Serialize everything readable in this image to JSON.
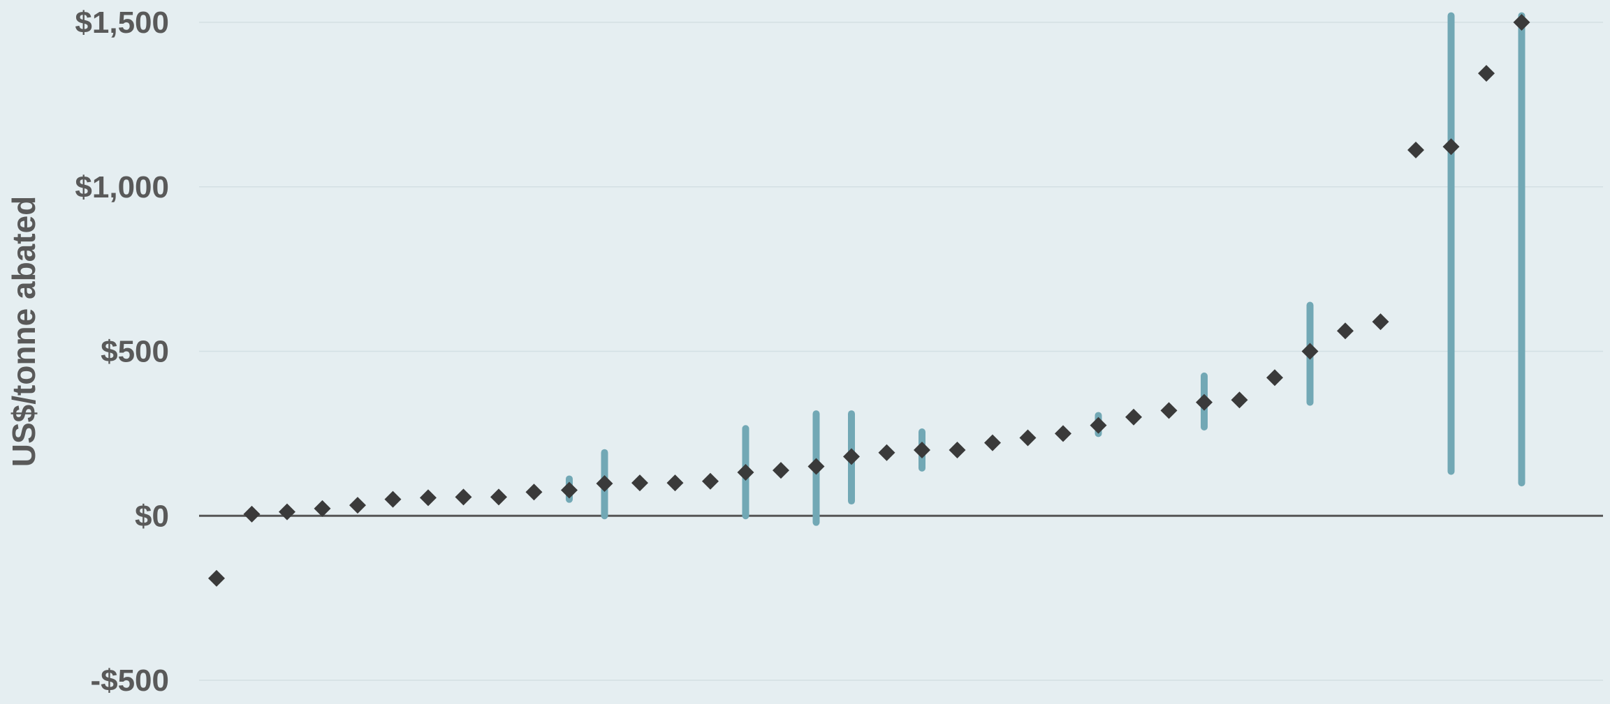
{
  "chart_data": {
    "type": "scatter",
    "title": "",
    "xlabel": "",
    "ylabel": "US$/tonne abated",
    "ylim": [
      -500,
      1500
    ],
    "yticks": [
      {
        "value": 1500,
        "label": "$1,500"
      },
      {
        "value": 1000,
        "label": "$1,000"
      },
      {
        "value": 500,
        "label": "$500"
      },
      {
        "value": 0,
        "label": "$0"
      },
      {
        "value": -500,
        "label": "-$500"
      }
    ],
    "grid": true,
    "legend": "none",
    "colors": {
      "point": "#3a3a3a",
      "range_bar": "#72a8b5",
      "grid": "#d3dfe3",
      "zero_line": "#555555",
      "background": "#e5eef1",
      "text": "#595959"
    },
    "points": [
      {
        "x": 1,
        "y": -190
      },
      {
        "x": 2,
        "y": 5
      },
      {
        "x": 3,
        "y": 12
      },
      {
        "x": 4,
        "y": 22
      },
      {
        "x": 5,
        "y": 32
      },
      {
        "x": 6,
        "y": 50
      },
      {
        "x": 7,
        "y": 55,
        "low": 50,
        "high": 60
      },
      {
        "x": 8,
        "y": 57
      },
      {
        "x": 9,
        "y": 57
      },
      {
        "x": 10,
        "y": 72
      },
      {
        "x": 11,
        "y": 78,
        "low": 50,
        "high": 112
      },
      {
        "x": 12,
        "y": 98,
        "low": 0,
        "high": 192
      },
      {
        "x": 13,
        "y": 100
      },
      {
        "x": 14,
        "y": 100
      },
      {
        "x": 15,
        "y": 105
      },
      {
        "x": 16,
        "y": 132,
        "low": 0,
        "high": 265
      },
      {
        "x": 17,
        "y": 138
      },
      {
        "x": 18,
        "y": 150,
        "low": -20,
        "high": 310
      },
      {
        "x": 19,
        "y": 180,
        "low": 45,
        "high": 310
      },
      {
        "x": 20,
        "y": 192
      },
      {
        "x": 21,
        "y": 200,
        "low": 145,
        "high": 255
      },
      {
        "x": 22,
        "y": 200
      },
      {
        "x": 23,
        "y": 222
      },
      {
        "x": 24,
        "y": 237
      },
      {
        "x": 25,
        "y": 250
      },
      {
        "x": 26,
        "y": 275,
        "low": 250,
        "high": 305
      },
      {
        "x": 27,
        "y": 300
      },
      {
        "x": 28,
        "y": 320
      },
      {
        "x": 29,
        "y": 345,
        "low": 270,
        "high": 425
      },
      {
        "x": 30,
        "y": 352
      },
      {
        "x": 31,
        "y": 420
      },
      {
        "x": 32,
        "y": 500,
        "low": 345,
        "high": 640
      },
      {
        "x": 33,
        "y": 562
      },
      {
        "x": 34,
        "y": 590
      },
      {
        "x": 35,
        "y": 1112
      },
      {
        "x": 36,
        "y": 1122,
        "low": 135,
        "high": 1520
      },
      {
        "x": 37,
        "y": 1345
      },
      {
        "x": 38,
        "y": 1500,
        "low": 100,
        "high": 1520
      }
    ]
  }
}
